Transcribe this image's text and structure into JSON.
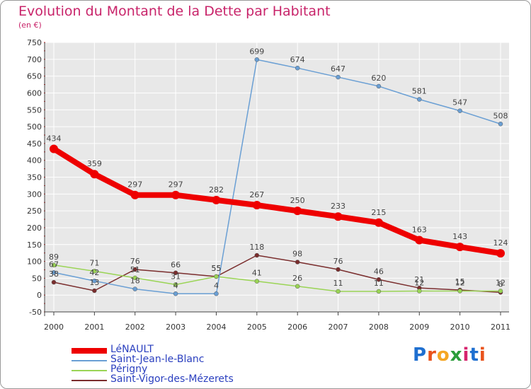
{
  "title": "Evolution du Montant de la Dette par Habitant",
  "unit": "(en €)",
  "logo": {
    "text": "Proxiti",
    "colors": [
      "#1e6fd0",
      "#e9531c",
      "#f5a623",
      "#2a9d3a",
      "#d6246e",
      "#1e6fd0",
      "#e9531c"
    ]
  },
  "chart_data": {
    "type": "line",
    "x": [
      "2000",
      "2001",
      "2002",
      "2003",
      "2004",
      "2005",
      "2006",
      "2007",
      "2008",
      "2009",
      "2010",
      "2011"
    ],
    "ylim": [
      -50,
      750
    ],
    "yticks": [
      "-50",
      "0",
      "50",
      "100",
      "150",
      "200",
      "250",
      "300",
      "350",
      "400",
      "450",
      "500",
      "550",
      "600",
      "650",
      "700",
      "750"
    ],
    "grid": true,
    "legend_position": "bottom-left",
    "series": [
      {
        "name": "LéNAULT",
        "color": "#ee0000",
        "values": [
          434,
          359,
          297,
          297,
          282,
          267,
          250,
          233,
          215,
          163,
          143,
          124
        ],
        "labels": [
          "434",
          "359",
          "297",
          "297",
          "282",
          "267",
          "250",
          "233",
          "215",
          "163",
          "143",
          "124"
        ]
      },
      {
        "name": "Saint-Jean-le-Blanc",
        "color": "#6a9fd4",
        "values": [
          67,
          42,
          18,
          4,
          4,
          699,
          674,
          647,
          620,
          581,
          547,
          508
        ],
        "labels": [
          "67",
          "42",
          "18",
          "4",
          "4",
          "699",
          "674",
          "647",
          "620",
          "581",
          "547",
          "508"
        ]
      },
      {
        "name": "Périgny",
        "color": "#9ad455",
        "values": [
          89,
          71,
          51,
          31,
          55,
          41,
          26,
          11,
          11,
          12,
          12,
          12
        ],
        "labels": [
          "89",
          "71",
          "51",
          "31",
          "55",
          "41",
          "26",
          "11",
          "11",
          "12",
          "12",
          "12"
        ]
      },
      {
        "name": "Saint-Vigor-des-Mézerets",
        "color": "#7a2d2d",
        "values": [
          38,
          13,
          76,
          66,
          55,
          118,
          98,
          76,
          46,
          21,
          15,
          8
        ],
        "labels": [
          "38",
          "13",
          "76",
          "66",
          "55",
          "118",
          "98",
          "76",
          "46",
          "21",
          "15",
          "8"
        ]
      }
    ]
  }
}
